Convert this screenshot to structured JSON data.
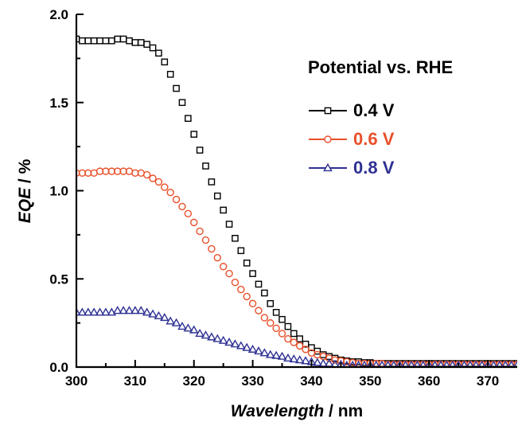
{
  "chart_data": {
    "type": "scatter",
    "xlabel_italic": "Wavelength",
    "xlabel_unit": " / nm",
    "ylabel_italic": "EQE",
    "ylabel_unit": " / %",
    "xlim": [
      300,
      375
    ],
    "ylim": [
      0,
      2.0
    ],
    "x_ticks": [
      "300",
      "310",
      "320",
      "330",
      "340",
      "350",
      "360",
      "370"
    ],
    "y_ticks": [
      "0.0",
      "0.5",
      "1.0",
      "1.5",
      "2.0"
    ],
    "legend_title": "Potential vs. RHE",
    "legend_position": "top-right",
    "grid": false,
    "series": [
      {
        "name": "0.4 V",
        "color": "#000000",
        "marker": "square",
        "x": [
          300,
          301,
          302,
          303,
          304,
          305,
          306,
          307,
          308,
          309,
          310,
          311,
          312,
          313,
          314,
          315,
          316,
          317,
          318,
          319,
          320,
          321,
          322,
          323,
          324,
          325,
          326,
          327,
          328,
          329,
          330,
          331,
          332,
          333,
          334,
          335,
          336,
          337,
          338,
          339,
          340,
          341,
          342,
          343,
          344,
          345,
          346,
          347,
          348,
          349,
          350,
          351,
          352,
          353,
          354,
          355,
          356,
          357,
          358,
          359,
          360,
          361,
          362,
          363,
          364,
          365,
          366,
          367,
          368,
          369,
          370,
          371,
          372,
          373,
          374,
          375
        ],
        "y": [
          1.86,
          1.85,
          1.85,
          1.85,
          1.85,
          1.85,
          1.85,
          1.86,
          1.86,
          1.85,
          1.84,
          1.84,
          1.83,
          1.81,
          1.78,
          1.73,
          1.66,
          1.58,
          1.5,
          1.41,
          1.32,
          1.23,
          1.14,
          1.05,
          0.97,
          0.89,
          0.81,
          0.73,
          0.66,
          0.59,
          0.53,
          0.47,
          0.42,
          0.36,
          0.31,
          0.27,
          0.23,
          0.19,
          0.16,
          0.13,
          0.11,
          0.09,
          0.07,
          0.06,
          0.05,
          0.04,
          0.035,
          0.03,
          0.03,
          0.025,
          0.025,
          0.02,
          0.02,
          0.02,
          0.02,
          0.02,
          0.02,
          0.02,
          0.02,
          0.02,
          0.02,
          0.02,
          0.02,
          0.02,
          0.02,
          0.02,
          0.02,
          0.02,
          0.02,
          0.02,
          0.02,
          0.02,
          0.02,
          0.02,
          0.02,
          0.02
        ]
      },
      {
        "name": "0.6 V",
        "color": "#e8502a",
        "marker": "circle",
        "x": [
          300,
          301,
          302,
          303,
          304,
          305,
          306,
          307,
          308,
          309,
          310,
          311,
          312,
          313,
          314,
          315,
          316,
          317,
          318,
          319,
          320,
          321,
          322,
          323,
          324,
          325,
          326,
          327,
          328,
          329,
          330,
          331,
          332,
          333,
          334,
          335,
          336,
          337,
          338,
          339,
          340,
          341,
          342,
          343,
          344,
          345,
          346,
          347,
          348,
          349,
          350,
          351,
          352,
          353,
          354,
          355,
          356,
          357,
          358,
          359,
          360,
          361,
          362,
          363,
          364,
          365,
          366,
          367,
          368,
          369,
          370,
          371,
          372,
          373,
          374,
          375
        ],
        "y": [
          1.1,
          1.1,
          1.1,
          1.1,
          1.11,
          1.11,
          1.11,
          1.11,
          1.11,
          1.11,
          1.1,
          1.1,
          1.09,
          1.07,
          1.05,
          1.02,
          0.99,
          0.95,
          0.91,
          0.87,
          0.82,
          0.77,
          0.72,
          0.67,
          0.62,
          0.57,
          0.53,
          0.48,
          0.44,
          0.4,
          0.36,
          0.32,
          0.28,
          0.25,
          0.22,
          0.19,
          0.16,
          0.14,
          0.12,
          0.1,
          0.08,
          0.07,
          0.06,
          0.05,
          0.04,
          0.035,
          0.03,
          0.025,
          0.02,
          0.02,
          0.02,
          0.02,
          0.02,
          0.015,
          0.015,
          0.015,
          0.015,
          0.015,
          0.015,
          0.015,
          0.015,
          0.015,
          0.015,
          0.015,
          0.015,
          0.015,
          0.015,
          0.015,
          0.015,
          0.015,
          0.015,
          0.015,
          0.015,
          0.015,
          0.015,
          0.015
        ]
      },
      {
        "name": "0.8 V",
        "color": "#2e3192",
        "marker": "triangle",
        "x": [
          300,
          301,
          302,
          303,
          304,
          305,
          306,
          307,
          308,
          309,
          310,
          311,
          312,
          313,
          314,
          315,
          316,
          317,
          318,
          319,
          320,
          321,
          322,
          323,
          324,
          325,
          326,
          327,
          328,
          329,
          330,
          331,
          332,
          333,
          334,
          335,
          336,
          337,
          338,
          339,
          340,
          341,
          342,
          343,
          344,
          345,
          346,
          347,
          348,
          349,
          350,
          351,
          352,
          353,
          354,
          355,
          356,
          357,
          358,
          359,
          360,
          361,
          362,
          363,
          364,
          365,
          366,
          367,
          368,
          369,
          370,
          371,
          372,
          373,
          374,
          375
        ],
        "y": [
          0.31,
          0.31,
          0.31,
          0.31,
          0.31,
          0.31,
          0.31,
          0.32,
          0.32,
          0.32,
          0.32,
          0.32,
          0.31,
          0.3,
          0.29,
          0.28,
          0.26,
          0.25,
          0.23,
          0.22,
          0.21,
          0.19,
          0.18,
          0.17,
          0.16,
          0.15,
          0.14,
          0.13,
          0.12,
          0.11,
          0.1,
          0.09,
          0.08,
          0.07,
          0.065,
          0.06,
          0.05,
          0.045,
          0.04,
          0.035,
          0.03,
          0.025,
          0.02,
          0.02,
          0.015,
          0.015,
          0.01,
          0.01,
          0.01,
          0.01,
          0.01,
          0.01,
          0.01,
          0.01,
          0.01,
          0.01,
          0.01,
          0.01,
          0.01,
          0.01,
          0.01,
          0.01,
          0.01,
          0.01,
          0.01,
          0.01,
          0.01,
          0.01,
          0.01,
          0.01,
          0.01,
          0.01,
          0.01,
          0.01,
          0.01,
          0.01
        ]
      }
    ]
  }
}
